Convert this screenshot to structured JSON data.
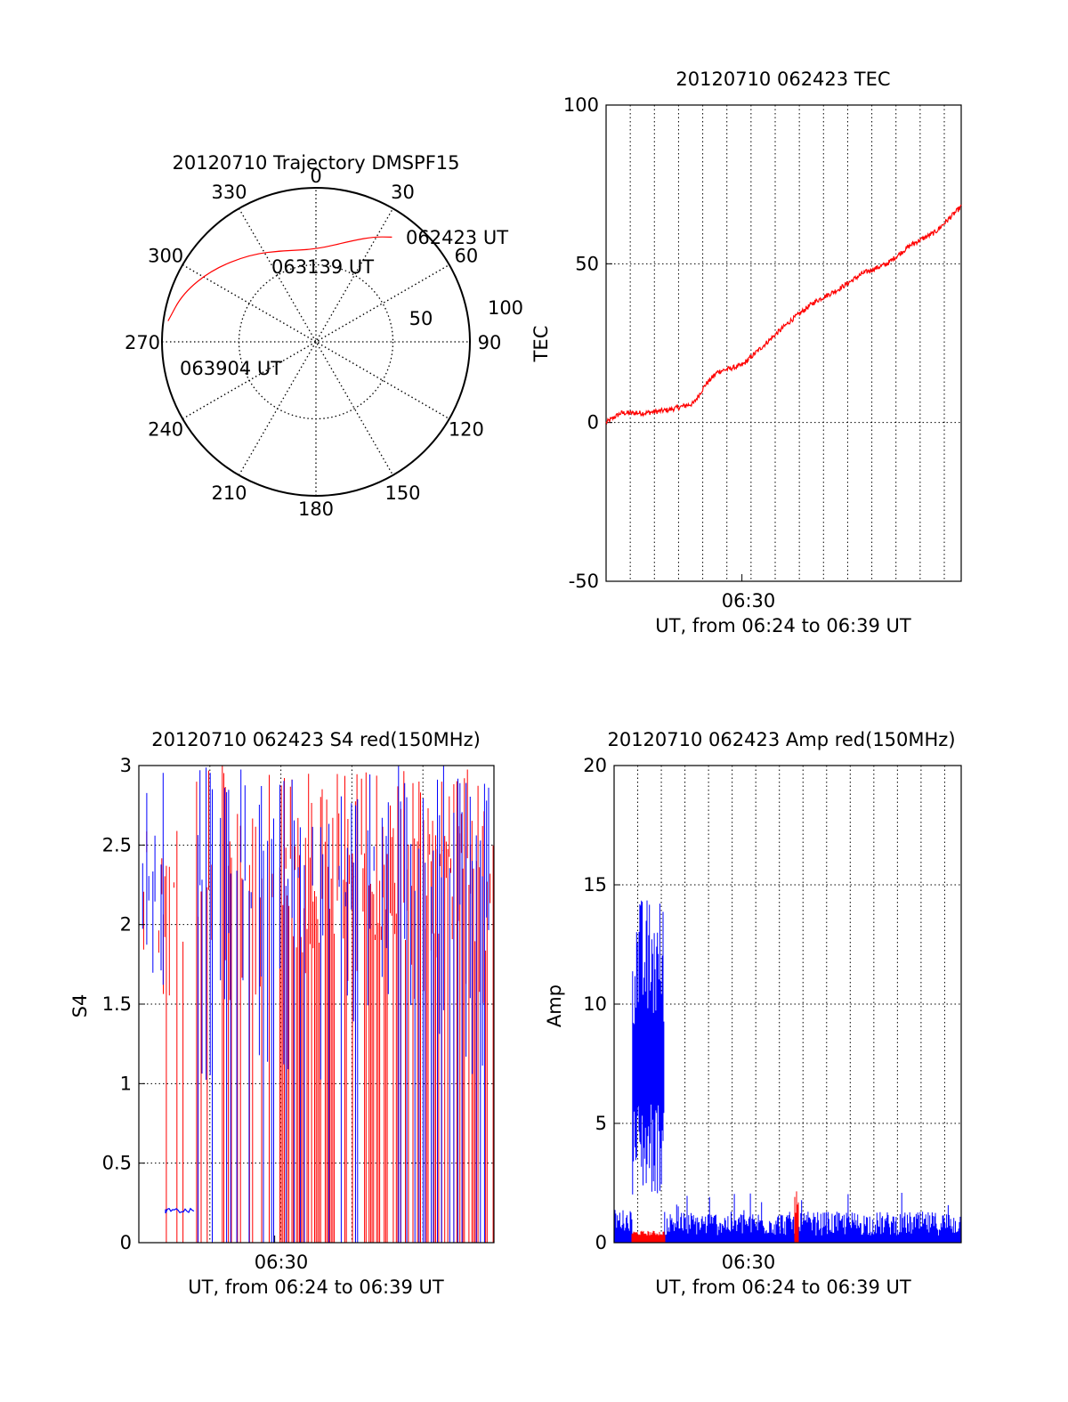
{
  "chart_data": [
    {
      "id": "trajectory",
      "type": "polar",
      "title": "20120710 Trajectory DMSPF15",
      "angle_labels": [
        "0",
        "30",
        "60",
        "90",
        "120",
        "150",
        "180",
        "210",
        "240",
        "270",
        "300",
        "330"
      ],
      "radial_labels": [
        "50",
        "100"
      ],
      "rlim": [
        0,
        100
      ],
      "colors": {
        "track": "#ff0000"
      },
      "track": {
        "color": "#ff0000",
        "points": [
          {
            "az": 36,
            "r": 84
          },
          {
            "az": 29,
            "r": 78
          },
          {
            "az": 20,
            "r": 70
          },
          {
            "az": 0,
            "r": 60
          },
          {
            "az": -20,
            "r": 63
          },
          {
            "az": -37,
            "r": 71
          },
          {
            "az": -55,
            "r": 82
          },
          {
            "az": -70,
            "r": 92
          },
          {
            "az": -82,
            "r": 97
          }
        ]
      },
      "annotations": [
        {
          "text": "062423 UT",
          "az": 36,
          "r": 84
        },
        {
          "text": "063139 UT",
          "az": -2,
          "r": 59
        },
        {
          "text": "063904 UT",
          "az": -82,
          "r": 97
        }
      ]
    },
    {
      "id": "tec",
      "type": "line",
      "title": "20120710 062423 TEC",
      "ylabel": "TEC",
      "xlabel": "UT, from 06:24 to 06:39 UT",
      "xlim": [
        "06:24:23",
        "06:39:04"
      ],
      "ylim": [
        -50,
        100
      ],
      "yticks": [
        "-50",
        "0",
        "50",
        "100"
      ],
      "xtick_labels": [
        {
          "label": "06:30",
          "time": "06:30"
        }
      ],
      "grid": true,
      "series": [
        {
          "color": "#ff0000",
          "x": [
            "06:24:23",
            "06:25:00",
            "06:26:00",
            "06:27:00",
            "06:28:00",
            "06:28:30",
            "06:29:00",
            "06:30:00",
            "06:31:00",
            "06:32:00",
            "06:33:00",
            "06:34:00",
            "06:35:00",
            "06:36:00",
            "06:37:00",
            "06:38:00",
            "06:39:04"
          ],
          "y": [
            0,
            3,
            3,
            4,
            6,
            12,
            16,
            18,
            25,
            32,
            38,
            42,
            47,
            50,
            56,
            60,
            68
          ]
        }
      ]
    },
    {
      "id": "s4",
      "type": "line",
      "title": "20120710 062423 S4 red(150MHz)",
      "ylabel": "S4",
      "xlabel": "UT, from 06:24 to 06:39 UT",
      "xlim": [
        "06:24:23",
        "06:39:04"
      ],
      "ylim": [
        0,
        3
      ],
      "yticks": [
        "0",
        "0.5",
        "1",
        "1.5",
        "2",
        "2.5",
        "3"
      ],
      "xtick_labels": [
        {
          "label": "06:30",
          "time": "06:30"
        }
      ],
      "grid": true,
      "series": [
        {
          "color": "#ff0000"
        },
        {
          "color": "#0000ff"
        }
      ]
    },
    {
      "id": "amp",
      "type": "line",
      "title": "20120710 062423 Amp red(150MHz)",
      "ylabel": "Amp",
      "xlabel": "UT, from 06:24 to 06:39 UT",
      "xlim": [
        "06:24:23",
        "06:39:04"
      ],
      "ylim": [
        0,
        20
      ],
      "yticks": [
        "0",
        "5",
        "10",
        "15",
        "20"
      ],
      "xtick_labels": [
        {
          "label": "06:30",
          "time": "06:30"
        }
      ],
      "grid": true,
      "series": [
        {
          "color": "#ff0000"
        },
        {
          "color": "#0000ff"
        }
      ]
    }
  ]
}
